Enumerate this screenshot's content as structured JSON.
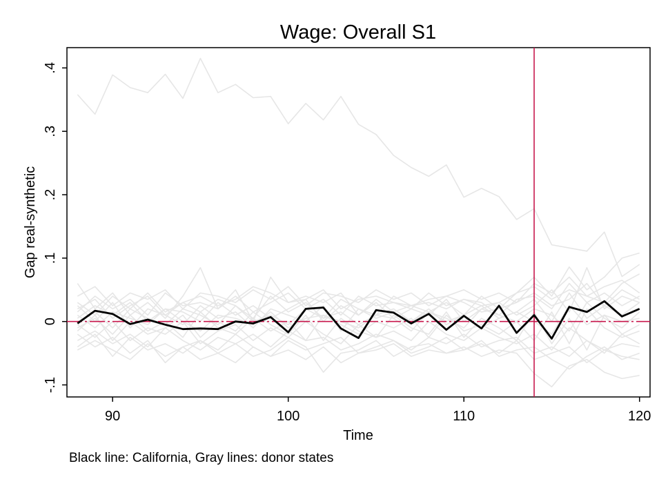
{
  "chart_data": {
    "type": "line",
    "title": "Wage: Overall S1",
    "xlabel": "Time",
    "ylabel": "Gap real-synthetic",
    "note": "Black line: California, Gray lines: donor states",
    "xlim": [
      87.4,
      120.6
    ],
    "ylim": [
      -0.119,
      0.432
    ],
    "xticks": [
      90,
      100,
      110,
      120
    ],
    "xtick_labels": [
      "90",
      "100",
      "110",
      "120"
    ],
    "yticks": [
      -0.1,
      0,
      0.1,
      0.2,
      0.3,
      0.4
    ],
    "ytick_labels": [
      "-.1",
      "0",
      ".1",
      ".2",
      ".3",
      ".4"
    ],
    "x": [
      88,
      89,
      90,
      91,
      92,
      93,
      94,
      95,
      96,
      97,
      98,
      99,
      100,
      101,
      102,
      103,
      104,
      105,
      106,
      107,
      108,
      109,
      110,
      111,
      112,
      113,
      114,
      115,
      116,
      117,
      118,
      119,
      120
    ],
    "treatment_x": 114,
    "reference_y": 0,
    "colors": {
      "treated": "#000000",
      "donor": "#e6e6e6",
      "reference": "#c8174c",
      "frame": "#000000"
    },
    "series": [
      {
        "name": "California",
        "role": "treated",
        "values": [
          -0.003,
          0.017,
          0.012,
          -0.004,
          0.003,
          -0.005,
          -0.012,
          -0.011,
          -0.012,
          0.0,
          -0.003,
          0.007,
          -0.017,
          0.02,
          0.022,
          -0.011,
          -0.026,
          0.018,
          0.014,
          -0.003,
          0.012,
          -0.013,
          0.009,
          -0.011,
          0.025,
          -0.018,
          0.01,
          -0.027,
          0.023,
          0.015,
          0.032,
          0.008,
          0.02
        ]
      },
      {
        "name": "",
        "role": "donor",
        "values": [
          0.358,
          0.327,
          0.389,
          0.369,
          0.361,
          0.39,
          0.352,
          0.415,
          0.361,
          0.374,
          0.353,
          0.355,
          0.312,
          0.344,
          0.318,
          0.355,
          0.311,
          0.295,
          0.262,
          0.243,
          0.229,
          0.247,
          0.196,
          0.21,
          0.197,
          0.161,
          0.178,
          0.121,
          0.116,
          0.111,
          0.141,
          0.071,
          0.09
        ]
      },
      {
        "name": "",
        "role": "donor",
        "values": [
          0.06,
          0.02,
          0.045,
          0.01,
          0.03,
          0.005,
          0.04,
          0.085,
          0.02,
          0.05,
          0.0,
          0.07,
          0.03,
          0.04,
          0.03,
          0.045,
          0.01,
          0.035,
          0.015,
          0.025,
          0.03,
          0.02,
          0.035,
          0.025,
          0.03,
          0.045,
          0.07,
          0.04,
          0.086,
          0.05,
          0.07,
          0.1,
          0.108
        ]
      },
      {
        "name": "",
        "role": "donor",
        "values": [
          -0.045,
          -0.03,
          -0.045,
          -0.06,
          -0.035,
          -0.055,
          -0.04,
          -0.06,
          -0.05,
          -0.065,
          -0.04,
          -0.055,
          -0.045,
          -0.06,
          -0.04,
          -0.065,
          -0.05,
          -0.045,
          -0.035,
          -0.055,
          -0.045,
          -0.05,
          -0.04,
          -0.055,
          -0.045,
          -0.05,
          -0.082,
          -0.103,
          -0.07,
          -0.06,
          -0.08,
          -0.09,
          -0.085
        ]
      },
      {
        "name": "",
        "role": "donor",
        "values": [
          0.03,
          0.01,
          0.04,
          0.02,
          0.045,
          0.015,
          0.03,
          0.04,
          0.025,
          0.035,
          0.055,
          0.045,
          0.03,
          0.035,
          0.05,
          0.02,
          0.035,
          0.04,
          0.03,
          0.025,
          0.035,
          0.04,
          0.03,
          0.015,
          0.02,
          0.045,
          0.055,
          0.035,
          0.05,
          0.04,
          0.03,
          0.06,
          0.075
        ]
      },
      {
        "name": "",
        "role": "donor",
        "values": [
          -0.02,
          -0.04,
          -0.025,
          -0.05,
          -0.03,
          -0.065,
          -0.04,
          -0.03,
          -0.05,
          -0.035,
          -0.055,
          -0.045,
          -0.025,
          -0.04,
          -0.08,
          -0.05,
          -0.045,
          -0.03,
          -0.055,
          -0.04,
          -0.035,
          -0.05,
          -0.045,
          -0.03,
          -0.055,
          -0.045,
          -0.04,
          -0.06,
          -0.075,
          -0.055,
          -0.04,
          -0.06,
          -0.05
        ]
      },
      {
        "name": "",
        "role": "donor",
        "values": [
          0.015,
          0.04,
          0.02,
          0.035,
          0.01,
          0.045,
          0.025,
          0.03,
          0.02,
          0.04,
          0.015,
          0.03,
          0.045,
          0.02,
          0.035,
          0.01,
          0.04,
          0.025,
          0.03,
          0.02,
          0.045,
          0.025,
          0.035,
          0.03,
          0.01,
          0.035,
          0.04,
          0.02,
          0.06,
          0.03,
          0.045,
          0.025,
          0.04
        ]
      },
      {
        "name": "",
        "role": "donor",
        "values": [
          -0.01,
          0.005,
          -0.02,
          0.01,
          -0.015,
          0.0,
          -0.025,
          0.015,
          -0.01,
          -0.02,
          0.005,
          -0.015,
          0.0,
          -0.03,
          0.01,
          -0.005,
          -0.02,
          0.0,
          -0.01,
          0.005,
          -0.025,
          0.01,
          -0.015,
          -0.005,
          -0.02,
          0.0,
          -0.03,
          0.015,
          -0.035,
          0.02,
          -0.01,
          -0.025,
          -0.015
        ]
      },
      {
        "name": "",
        "role": "donor",
        "values": [
          0.025,
          0.0,
          0.03,
          -0.01,
          0.02,
          0.01,
          -0.005,
          0.025,
          0.005,
          0.015,
          -0.01,
          0.02,
          0.01,
          0.0,
          0.025,
          -0.015,
          0.02,
          0.005,
          0.015,
          0.0,
          0.02,
          -0.005,
          0.01,
          0.025,
          0.005,
          0.015,
          0.035,
          0.0,
          0.045,
          0.005,
          0.025,
          0.01,
          0.03
        ]
      },
      {
        "name": "",
        "role": "donor",
        "values": [
          -0.03,
          -0.015,
          -0.035,
          -0.02,
          -0.04,
          -0.01,
          -0.03,
          -0.045,
          -0.025,
          -0.035,
          -0.02,
          -0.04,
          -0.015,
          -0.03,
          -0.025,
          -0.045,
          -0.035,
          -0.02,
          -0.03,
          -0.045,
          -0.025,
          -0.035,
          -0.02,
          -0.04,
          -0.03,
          -0.025,
          -0.05,
          -0.04,
          -0.055,
          -0.03,
          -0.045,
          -0.035,
          -0.04
        ]
      },
      {
        "name": "",
        "role": "donor",
        "values": [
          0.005,
          0.025,
          0.01,
          0.03,
          0.0,
          0.02,
          0.015,
          0.0,
          0.03,
          0.01,
          0.025,
          0.005,
          0.02,
          0.035,
          0.0,
          0.025,
          0.01,
          0.03,
          0.005,
          0.02,
          0.01,
          0.035,
          0.0,
          0.02,
          0.03,
          0.01,
          0.025,
          0.05,
          0.015,
          0.085,
          0.02,
          0.04,
          0.03
        ]
      },
      {
        "name": "",
        "role": "donor",
        "values": [
          -0.005,
          -0.025,
          0.0,
          -0.03,
          -0.01,
          -0.02,
          0.0,
          -0.035,
          -0.015,
          -0.005,
          -0.03,
          -0.01,
          -0.025,
          0.0,
          -0.02,
          -0.035,
          -0.005,
          -0.025,
          -0.015,
          -0.03,
          0.0,
          -0.02,
          -0.03,
          -0.01,
          -0.025,
          -0.035,
          -0.02,
          -0.045,
          -0.01,
          -0.03,
          -0.05,
          -0.02,
          -0.035
        ]
      },
      {
        "name": "",
        "role": "donor",
        "values": [
          0.04,
          0.055,
          0.025,
          0.045,
          0.035,
          0.05,
          0.02,
          0.045,
          0.04,
          0.03,
          0.05,
          0.035,
          0.055,
          0.025,
          0.045,
          0.04,
          0.03,
          0.05,
          0.035,
          0.045,
          0.025,
          0.04,
          0.05,
          0.035,
          0.045,
          0.03,
          0.06,
          0.045,
          0.07,
          0.04,
          0.055,
          0.065,
          0.045
        ]
      },
      {
        "name": "",
        "role": "donor",
        "values": [
          0.01,
          -0.01,
          0.015,
          0.005,
          -0.005,
          0.02,
          0.0,
          -0.015,
          0.01,
          0.005,
          -0.005,
          0.015,
          -0.01,
          0.005,
          0.01,
          0.0,
          -0.01,
          0.01,
          0.005,
          -0.015,
          0.015,
          0.0,
          0.01,
          -0.01,
          0.005,
          0.015,
          0.0,
          -0.02,
          0.025,
          -0.005,
          0.01,
          0.0,
          0.005
        ]
      },
      {
        "name": "",
        "role": "donor",
        "values": [
          -0.015,
          0.01,
          -0.03,
          0.0,
          -0.02,
          -0.01,
          0.01,
          -0.025,
          0.0,
          -0.015,
          0.015,
          -0.005,
          -0.02,
          0.01,
          -0.03,
          0.005,
          -0.015,
          -0.025,
          0.01,
          -0.01,
          -0.02,
          0.015,
          -0.025,
          0.005,
          -0.01,
          -0.03,
          0.015,
          -0.035,
          0.005,
          -0.045,
          0.01,
          -0.02,
          -0.005
        ]
      },
      {
        "name": "",
        "role": "donor",
        "values": [
          0.02,
          0.035,
          0.005,
          0.025,
          0.04,
          0.01,
          0.03,
          0.015,
          0.035,
          0.025,
          0.005,
          0.04,
          0.015,
          0.03,
          0.005,
          0.035,
          0.02,
          0.01,
          0.04,
          0.025,
          0.015,
          0.03,
          0.01,
          0.04,
          0.02,
          0.03,
          0.045,
          0.025,
          0.035,
          0.06,
          0.025,
          0.05,
          0.035
        ]
      },
      {
        "name": "",
        "role": "donor",
        "values": [
          -0.04,
          -0.02,
          -0.055,
          -0.025,
          -0.045,
          -0.035,
          -0.05,
          -0.03,
          -0.045,
          -0.02,
          -0.04,
          -0.055,
          -0.03,
          -0.045,
          -0.035,
          -0.025,
          -0.05,
          -0.04,
          -0.03,
          -0.05,
          -0.04,
          -0.025,
          -0.045,
          -0.035,
          -0.05,
          -0.03,
          -0.06,
          -0.05,
          -0.04,
          -0.065,
          -0.045,
          -0.055,
          -0.06
        ]
      },
      {
        "name": "",
        "role": "donor",
        "values": [
          0.0,
          0.015,
          -0.01,
          0.02,
          0.005,
          -0.005,
          0.02,
          0.01,
          -0.005,
          0.025,
          0.0,
          0.01,
          -0.005,
          0.02,
          0.005,
          0.015,
          -0.005,
          0.01,
          0.02,
          0.0,
          0.015,
          0.005,
          -0.01,
          0.02,
          0.01,
          0.0,
          0.02,
          0.01,
          -0.015,
          0.03,
          0.005,
          -0.01,
          0.015
        ]
      }
    ]
  }
}
